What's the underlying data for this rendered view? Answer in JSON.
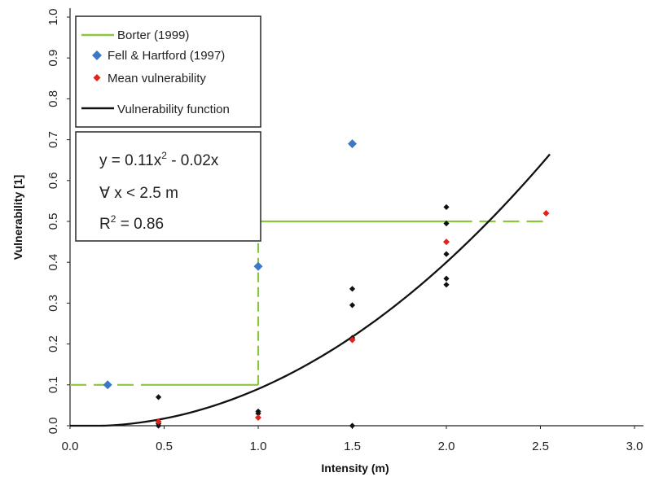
{
  "chart_data": {
    "type": "scatter",
    "xlabel": "Intensity (m)",
    "ylabel": "Vulnerability [1]",
    "xlim": [
      0,
      3.0
    ],
    "ylim": [
      0,
      1.0
    ],
    "x_ticks": [
      "0.0",
      "0.5",
      "1.0",
      "1.5",
      "2.0",
      "2.5",
      "3.0"
    ],
    "y_ticks": [
      "0.0",
      "0.1",
      "0.2",
      "0.3",
      "0.4",
      "0.5",
      "0.6",
      "0.7",
      "0.8",
      "0.9",
      "1.0"
    ],
    "grid": false,
    "legend_position": "top-left",
    "colors": {
      "borter": "#8cc63f",
      "fell": "#3b78c8",
      "mean": "#e2231a",
      "function": "#111111",
      "observations": "#111111"
    },
    "series": [
      {
        "name": "Borter (1999)",
        "kind": "step-line",
        "points": [
          [
            0.0,
            0.1
          ],
          [
            1.0,
            0.1
          ],
          [
            1.0,
            0.5
          ],
          [
            2.55,
            0.5
          ]
        ],
        "solid_x_range": [
          0.45,
          2.05
        ]
      },
      {
        "name": "Fell & Hartford (1997)",
        "kind": "points",
        "marker": "diamond",
        "points": [
          [
            0.2,
            0.1
          ],
          [
            1.0,
            0.39
          ],
          [
            1.5,
            0.69
          ]
        ]
      },
      {
        "name": "Mean vulnerability",
        "kind": "points",
        "marker": "diamond",
        "points": [
          [
            0.47,
            0.01
          ],
          [
            1.0,
            0.02
          ],
          [
            1.5,
            0.21
          ],
          [
            2.0,
            0.45
          ],
          [
            2.53,
            0.52
          ]
        ]
      },
      {
        "name": "Vulnerability function",
        "kind": "curve",
        "equation": "y = 0.11x^2 - 0.02x",
        "x_range": [
          0,
          2.55
        ]
      },
      {
        "kind": "points",
        "marker": "diamond",
        "points": [
          [
            0.47,
            0.07
          ],
          [
            0.47,
            0.01
          ],
          [
            0.47,
            0.0
          ],
          [
            0.47,
            0.005
          ],
          [
            1.0,
            0.035
          ],
          [
            1.0,
            0.03
          ],
          [
            1.5,
            0.335
          ],
          [
            1.5,
            0.295
          ],
          [
            1.5,
            0.215
          ],
          [
            1.5,
            0.0
          ],
          [
            2.0,
            0.535
          ],
          [
            2.0,
            0.495
          ],
          [
            2.0,
            0.42
          ],
          [
            2.0,
            0.36
          ],
          [
            2.0,
            0.345
          ]
        ]
      }
    ],
    "legend": [
      "Borter (1999)",
      "Fell & Hartford (1997)",
      "Mean vulnerability",
      "Vulnerability function"
    ],
    "annotation": {
      "line1_main": "y = 0.11x",
      "line1_sup": "2",
      "line1_rest": " - 0.02x",
      "line2": "∀ x < 2.5 m",
      "line3_main": "R",
      "line3_sup": "2",
      "line3_rest": " = 0.86"
    }
  }
}
